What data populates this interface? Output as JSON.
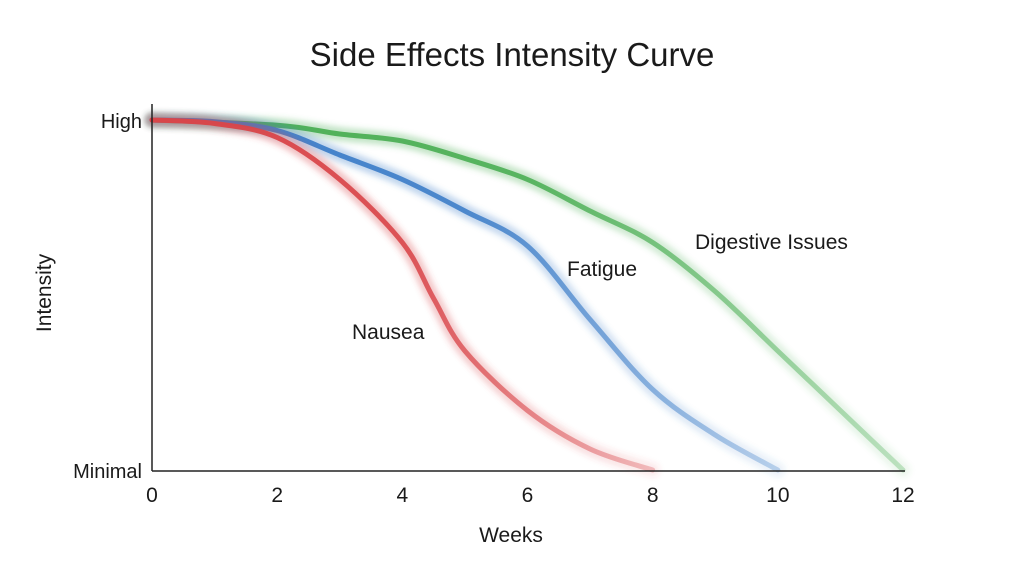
{
  "chart_data": {
    "type": "line",
    "title": "Side Effects Intensity Curve",
    "xlabel": "Weeks",
    "ylabel": "Intensity",
    "xlim": [
      0,
      12
    ],
    "ylim": [
      0,
      1
    ],
    "xticks": [
      0,
      2,
      4,
      6,
      8,
      10,
      12
    ],
    "yticks": [
      {
        "value": 0,
        "label": "Minimal"
      },
      {
        "value": 1,
        "label": "High"
      }
    ],
    "grid": false,
    "legend": "inline labels",
    "series": [
      {
        "name": "Nausea",
        "color": "#d9464a",
        "x": [
          0,
          1,
          2,
          3,
          4,
          4.5,
          5,
          6,
          7,
          8
        ],
        "y": [
          1.0,
          0.99,
          0.95,
          0.83,
          0.65,
          0.49,
          0.34,
          0.17,
          0.06,
          0.0
        ]
      },
      {
        "name": "Fatigue",
        "color": "#3f7fc9",
        "x": [
          0,
          1,
          2,
          3,
          4,
          5,
          6,
          7,
          8,
          9,
          10
        ],
        "y": [
          1.0,
          0.995,
          0.97,
          0.9,
          0.83,
          0.74,
          0.64,
          0.43,
          0.23,
          0.1,
          0.0
        ]
      },
      {
        "name": "Digestive Issues",
        "color": "#4caf55",
        "x": [
          0,
          2,
          3,
          4,
          5,
          6,
          7,
          8,
          9,
          10,
          11,
          12
        ],
        "y": [
          1.0,
          0.985,
          0.96,
          0.94,
          0.89,
          0.83,
          0.74,
          0.65,
          0.51,
          0.34,
          0.17,
          0.0
        ]
      }
    ]
  }
}
